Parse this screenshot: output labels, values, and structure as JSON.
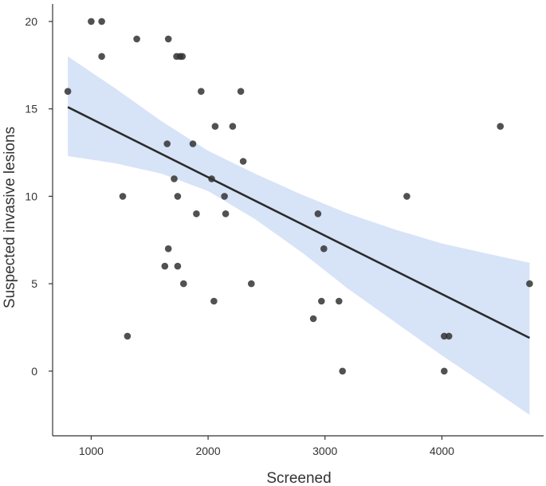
{
  "chart_data": {
    "type": "scatter",
    "title": "",
    "xlabel": "Screened",
    "ylabel": "Suspected invasive lesions",
    "xlim": [
      670,
      4870
    ],
    "ylim": [
      -3.7,
      21
    ],
    "x_ticks": [
      1000,
      2000,
      3000,
      4000
    ],
    "y_ticks": [
      0,
      5,
      10,
      15,
      20
    ],
    "x_tick_labels": [
      "1000",
      "2000",
      "3000",
      "4000"
    ],
    "y_tick_labels": [
      "0",
      "5",
      "10",
      "15",
      "20"
    ],
    "grid": false,
    "legend": "none",
    "points": [
      {
        "x": 800,
        "y": 16
      },
      {
        "x": 1000,
        "y": 20
      },
      {
        "x": 1090,
        "y": 20
      },
      {
        "x": 1090,
        "y": 18
      },
      {
        "x": 1390,
        "y": 19
      },
      {
        "x": 1660,
        "y": 19
      },
      {
        "x": 1730,
        "y": 18
      },
      {
        "x": 1760,
        "y": 18
      },
      {
        "x": 1780,
        "y": 18
      },
      {
        "x": 1940,
        "y": 16
      },
      {
        "x": 2280,
        "y": 16
      },
      {
        "x": 2060,
        "y": 14
      },
      {
        "x": 2210,
        "y": 14
      },
      {
        "x": 1650,
        "y": 13
      },
      {
        "x": 1870,
        "y": 13
      },
      {
        "x": 2300,
        "y": 12
      },
      {
        "x": 1710,
        "y": 11
      },
      {
        "x": 2030,
        "y": 11
      },
      {
        "x": 1270,
        "y": 10
      },
      {
        "x": 1740,
        "y": 10
      },
      {
        "x": 2140,
        "y": 10
      },
      {
        "x": 3700,
        "y": 10
      },
      {
        "x": 1900,
        "y": 9
      },
      {
        "x": 2150,
        "y": 9
      },
      {
        "x": 2940,
        "y": 9
      },
      {
        "x": 1660,
        "y": 7
      },
      {
        "x": 2990,
        "y": 7
      },
      {
        "x": 1630,
        "y": 6
      },
      {
        "x": 1740,
        "y": 6
      },
      {
        "x": 1790,
        "y": 5
      },
      {
        "x": 2370,
        "y": 5
      },
      {
        "x": 4750,
        "y": 5
      },
      {
        "x": 2050,
        "y": 4
      },
      {
        "x": 2970,
        "y": 4
      },
      {
        "x": 3120,
        "y": 4
      },
      {
        "x": 2900,
        "y": 3
      },
      {
        "x": 1310,
        "y": 2
      },
      {
        "x": 4020,
        "y": 2
      },
      {
        "x": 4060,
        "y": 2
      },
      {
        "x": 3150,
        "y": 0
      },
      {
        "x": 4020,
        "y": 0
      },
      {
        "x": 4500,
        "y": 14
      }
    ],
    "fit_line": {
      "x": [
        800,
        4750
      ],
      "y": [
        15.1,
        1.9
      ]
    },
    "confidence_band": {
      "x": [
        800,
        1200,
        1600,
        2000,
        2400,
        2800,
        3200,
        3600,
        4000,
        4400,
        4750
      ],
      "lower": [
        12.3,
        11.9,
        11.3,
        10.3,
        8.7,
        6.8,
        4.7,
        2.8,
        0.9,
        -0.9,
        -2.5
      ],
      "upper": [
        18.0,
        16.2,
        14.3,
        12.6,
        11.3,
        10.1,
        9.0,
        8.1,
        7.3,
        6.7,
        6.2
      ]
    },
    "colors": {
      "points": "#333333",
      "fit_line": "#2b2b2b",
      "band": "#c9d9f4",
      "axis": "#333333"
    }
  }
}
